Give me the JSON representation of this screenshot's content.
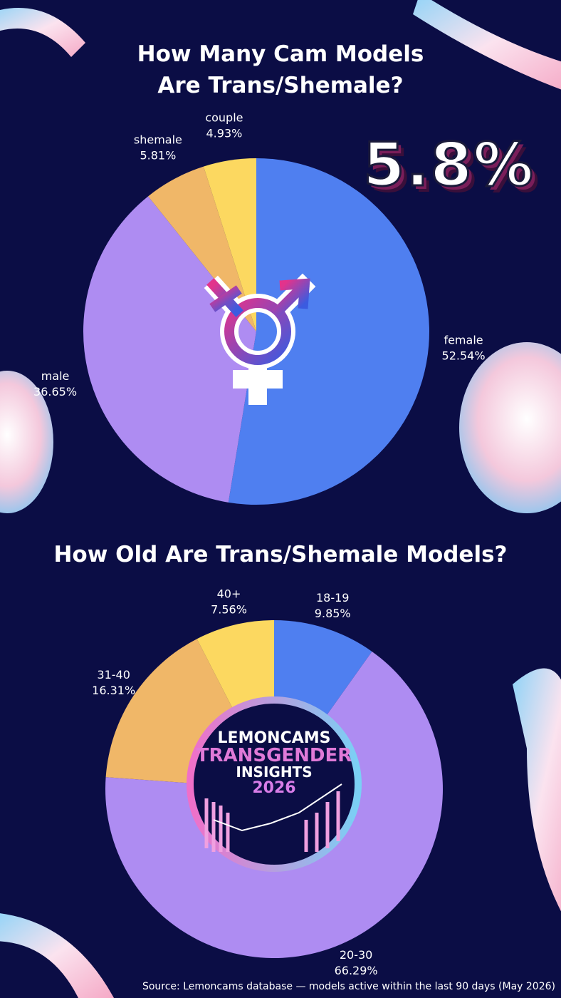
{
  "chart_data": [
    {
      "type": "pie",
      "title": "How Many Cam Models Are Trans/Shemale?",
      "categories": [
        "female",
        "male",
        "shemale",
        "couple"
      ],
      "values": [
        52.54,
        36.65,
        5.81,
        4.93
      ],
      "value_labels": [
        "52.54%",
        "36.65%",
        "5.81%",
        "4.93%"
      ],
      "colors": [
        "#4f7ff0",
        "#ae8cf2",
        "#f0b768",
        "#fcd860"
      ]
    },
    {
      "type": "pie",
      "title": "How Old Are Trans/Shemale Models?",
      "categories": [
        "18-19",
        "20-30",
        "31-40",
        "40+"
      ],
      "values": [
        9.85,
        66.29,
        16.31,
        7.56
      ],
      "value_labels": [
        "9.85%",
        "66.29%",
        "16.31%",
        "7.56%"
      ],
      "colors": [
        "#4f7ff0",
        "#ae8cf2",
        "#f0b768",
        "#fcd860"
      ]
    }
  ],
  "highlight": "5.8%",
  "badge": {
    "line1": "LEMONCAMS",
    "line2": "TRANSGENDER",
    "line3": "INSIGHTS",
    "line4": "2026"
  },
  "source": "Source: Lemoncams database — models active within the last 90 days (May 2026)"
}
